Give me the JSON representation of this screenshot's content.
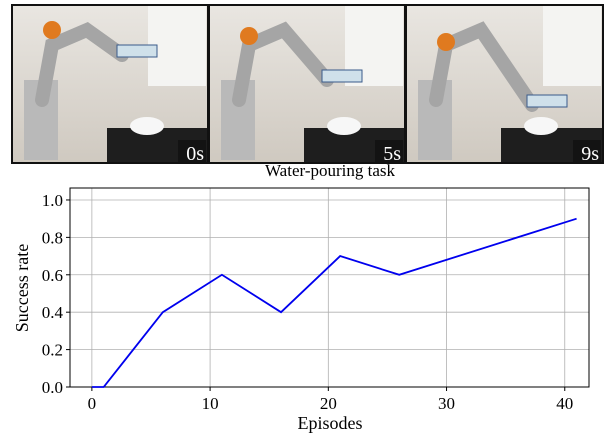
{
  "photos": {
    "labels": [
      "0s",
      "5s",
      "9s"
    ]
  },
  "chart_data": {
    "type": "line",
    "title": "Water-pouring task",
    "x_label": "Episodes",
    "y_label": "Success rate",
    "x": [
      0,
      1,
      6,
      11,
      16,
      21,
      26,
      41
    ],
    "series": [
      {
        "color": "#0000ee",
        "values": [
          0,
          0,
          0.4,
          0.6,
          0.4,
          0.7,
          0.6,
          0.9
        ]
      }
    ],
    "xlim": [
      -1.85,
      42.05
    ],
    "ylim": [
      0,
      1.064
    ],
    "xticks": [
      0,
      10,
      20,
      30,
      40
    ],
    "yticks": [
      {
        "value": 0,
        "label": "0.0"
      },
      {
        "value": 0.2,
        "label": "0.2"
      },
      {
        "value": 0.4,
        "label": "0.4"
      },
      {
        "value": 0.6,
        "label": "0.6"
      },
      {
        "value": 0.8,
        "label": "0.8"
      },
      {
        "value": 1.0,
        "label": "1.0"
      }
    ],
    "grid": true
  }
}
